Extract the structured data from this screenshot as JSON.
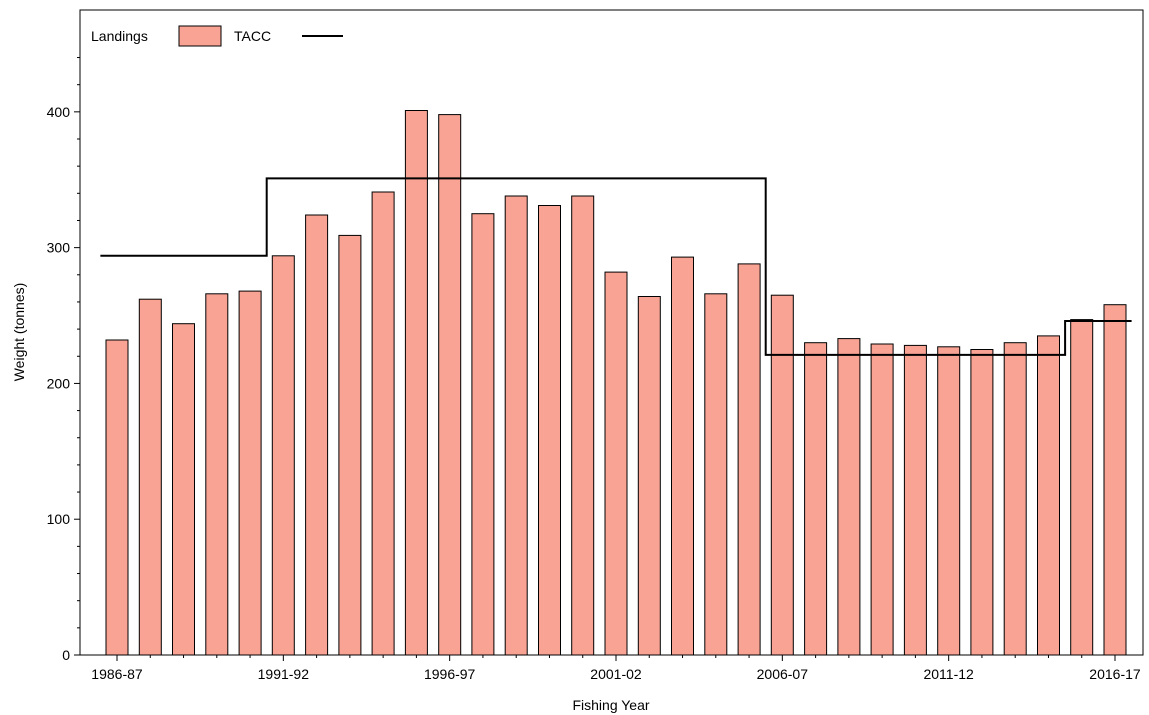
{
  "chart_data": {
    "type": "bar",
    "xlabel": "Fishing Year",
    "ylabel": "Weight (tonnes)",
    "ylim": [
      0,
      475
    ],
    "yticks": [
      0,
      100,
      200,
      300,
      400
    ],
    "legend": {
      "placement": "top-left",
      "bar_label": "Landings",
      "line_label": "TACC"
    },
    "grid": false,
    "colors": {
      "bar_fill": "#f9a394",
      "bar_stroke": "#000000",
      "line": "#000000"
    },
    "categories": [
      "1986-87",
      "1987-88",
      "1988-89",
      "1989-90",
      "1990-91",
      "1991-92",
      "1992-93",
      "1993-94",
      "1994-95",
      "1995-96",
      "1996-97",
      "1997-98",
      "1998-99",
      "1999-00",
      "2000-01",
      "2001-02",
      "2002-03",
      "2003-04",
      "2004-05",
      "2005-06",
      "2006-07",
      "2007-08",
      "2008-09",
      "2009-10",
      "2010-11",
      "2011-12",
      "2012-13",
      "2013-14",
      "2014-15",
      "2015-16",
      "2016-17"
    ],
    "x_tick_labels": [
      "1986-87",
      "1991-92",
      "1996-97",
      "2001-02",
      "2006-07",
      "2011-12",
      "2016-17"
    ],
    "series": [
      {
        "name": "Landings",
        "kind": "bar",
        "values": [
          232,
          262,
          244,
          266,
          268,
          294,
          324,
          309,
          341,
          401,
          398,
          325,
          338,
          331,
          338,
          282,
          264,
          293,
          266,
          288,
          265,
          230,
          233,
          229,
          228,
          227,
          225,
          230,
          235,
          247,
          258
        ]
      },
      {
        "name": "TACC",
        "kind": "step",
        "values": [
          294,
          294,
          294,
          294,
          294,
          351,
          351,
          351,
          351,
          351,
          351,
          351,
          351,
          351,
          351,
          351,
          351,
          351,
          351,
          351,
          221,
          221,
          221,
          221,
          221,
          221,
          221,
          221,
          221,
          246,
          246
        ]
      }
    ]
  }
}
